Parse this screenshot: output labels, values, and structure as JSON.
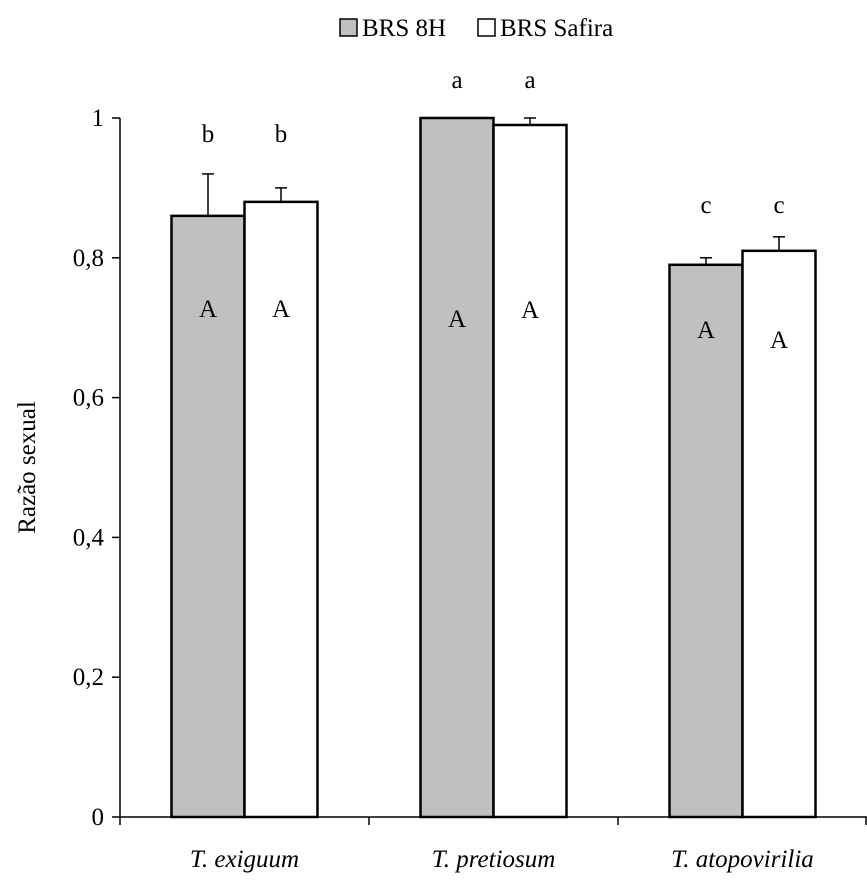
{
  "chart_data": {
    "type": "bar",
    "ylabel": "Razão sexual",
    "xlabel": "",
    "ylim": [
      0,
      1
    ],
    "yticks": [
      0,
      0.2,
      0.4,
      0.6,
      0.8,
      1
    ],
    "ytick_labels": [
      "0",
      "0,2",
      "0,4",
      "0,6",
      "0,8",
      "1"
    ],
    "grid": false,
    "legend_position": "top-center",
    "categories": [
      "T. exiguum",
      "T. pretiosum",
      "T. atopovirilia"
    ],
    "series": [
      {
        "name": "BRS 8H",
        "color": "#c0c0c0",
        "values": [
          0.86,
          1.0,
          0.79
        ],
        "errors": [
          0.06,
          0.0,
          0.01
        ],
        "letters_above": [
          "b",
          "a",
          "c"
        ],
        "letters_inside": [
          "A",
          "A",
          "A"
        ]
      },
      {
        "name": "BRS Safira",
        "color": "#ffffff",
        "values": [
          0.88,
          0.99,
          0.81
        ],
        "errors": [
          0.02,
          0.01,
          0.02
        ],
        "letters_above": [
          "b",
          "a",
          "c"
        ],
        "letters_inside": [
          "A",
          "A",
          "A"
        ]
      }
    ]
  }
}
